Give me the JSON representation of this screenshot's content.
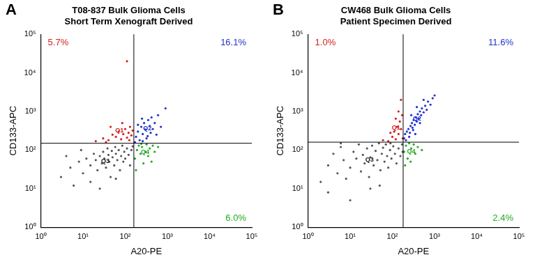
{
  "chart_data": [
    {
      "type": "scatter",
      "panel": "A",
      "title": [
        "T08-837 Bulk Glioma Cells",
        "Short Term Xenograft Derived"
      ],
      "x_label": "A20-PE",
      "y_label": "CD133-APC",
      "log": true,
      "grid": false,
      "xlim": [
        1,
        100000
      ],
      "ylim": [
        1,
        100000
      ],
      "xticks": [
        {
          "value": 1,
          "label": "10⁰"
        },
        {
          "value": 10,
          "label": "10¹"
        },
        {
          "value": 100,
          "label": "10²"
        },
        {
          "value": 1000,
          "label": "10³"
        },
        {
          "value": 10000,
          "label": "10⁴"
        },
        {
          "value": 100000,
          "label": "10⁵"
        }
      ],
      "yticks": [
        {
          "value": 1,
          "label": "10⁰"
        },
        {
          "value": 10,
          "label": "10¹"
        },
        {
          "value": 100,
          "label": "10²"
        },
        {
          "value": 1000,
          "label": "10³"
        },
        {
          "value": 10000,
          "label": "10⁴"
        },
        {
          "value": 100000,
          "label": "10⁵"
        }
      ],
      "gates": {
        "x": 160,
        "y": 150
      },
      "series": [
        {
          "name": "Q3",
          "color": "#555555",
          "values": [
            [
              3,
              20
            ],
            [
              5,
              35
            ],
            [
              8,
              50
            ],
            [
              10,
              25
            ],
            [
              12,
              60
            ],
            [
              15,
              40
            ],
            [
              18,
              80
            ],
            [
              20,
              55
            ],
            [
              22,
              30
            ],
            [
              25,
              70
            ],
            [
              28,
              45
            ],
            [
              30,
              90
            ],
            [
              32,
              60
            ],
            [
              35,
              35
            ],
            [
              38,
              110
            ],
            [
              40,
              75
            ],
            [
              42,
              50
            ],
            [
              45,
              20
            ],
            [
              48,
              95
            ],
            [
              50,
              65
            ],
            [
              55,
              40
            ],
            [
              58,
              120
            ],
            [
              60,
              80
            ],
            [
              65,
              55
            ],
            [
              70,
              100
            ],
            [
              75,
              30
            ],
            [
              80,
              70
            ],
            [
              85,
              130
            ],
            [
              90,
              50
            ],
            [
              95,
              90
            ],
            [
              100,
              60
            ],
            [
              110,
              110
            ],
            [
              120,
              75
            ],
            [
              130,
              40
            ],
            [
              140,
              100
            ],
            [
              150,
              125
            ],
            [
              6,
              12
            ],
            [
              15,
              15
            ],
            [
              25,
              10
            ],
            [
              60,
              18
            ],
            [
              4,
              70
            ],
            [
              9,
              100
            ]
          ]
        },
        {
          "name": "Q1",
          "color": "#d42020",
          "values": [
            [
              20,
              170
            ],
            [
              30,
              200
            ],
            [
              40,
              180
            ],
            [
              50,
              250
            ],
            [
              60,
              220
            ],
            [
              70,
              300
            ],
            [
              80,
              190
            ],
            [
              90,
              260
            ],
            [
              100,
              350
            ],
            [
              110,
              210
            ],
            [
              120,
              280
            ],
            [
              130,
              400
            ],
            [
              140,
              240
            ],
            [
              150,
              320
            ],
            [
              45,
              400
            ],
            [
              85,
              500
            ],
            [
              35,
              160
            ],
            [
              125,
              180
            ],
            [
              110,
              20000
            ]
          ],
          "percent": 5.7,
          "percent_label": "5.7%"
        },
        {
          "name": "Q2",
          "color": "#2233cc",
          "values": [
            [
              170,
              160
            ],
            [
              180,
              220
            ],
            [
              200,
              300
            ],
            [
              220,
              180
            ],
            [
              240,
              400
            ],
            [
              260,
              260
            ],
            [
              280,
              500
            ],
            [
              300,
              340
            ],
            [
              320,
              200
            ],
            [
              350,
              600
            ],
            [
              380,
              420
            ],
            [
              400,
              280
            ],
            [
              420,
              700
            ],
            [
              450,
              350
            ],
            [
              500,
              500
            ],
            [
              550,
              250
            ],
            [
              600,
              800
            ],
            [
              200,
              450
            ],
            [
              260,
              170
            ],
            [
              340,
              230
            ],
            [
              700,
              400
            ],
            [
              900,
              1200
            ],
            [
              250,
              650
            ]
          ],
          "percent": 16.1,
          "percent_label": "16.1%"
        },
        {
          "name": "Q4",
          "color": "#22aa22",
          "values": [
            [
              170,
              60
            ],
            [
              190,
              100
            ],
            [
              210,
              130
            ],
            [
              230,
              80
            ],
            [
              250,
              120
            ],
            [
              270,
              45
            ],
            [
              300,
              90
            ],
            [
              320,
              140
            ],
            [
              350,
              70
            ],
            [
              380,
              110
            ],
            [
              420,
              50
            ],
            [
              450,
              130
            ],
            [
              500,
              90
            ],
            [
              180,
              30
            ],
            [
              240,
              145
            ],
            [
              600,
              120
            ]
          ],
          "percent": 6.0,
          "percent_label": "6.0%"
        }
      ]
    },
    {
      "type": "scatter",
      "panel": "B",
      "title": [
        "CW468 Bulk Glioma Cells",
        "Patient Specimen Derived"
      ],
      "x_label": "A20-PE",
      "y_label": "CD133-APC",
      "log": true,
      "grid": false,
      "xlim": [
        1,
        100000
      ],
      "ylim": [
        1,
        100000
      ],
      "xticks": [
        {
          "value": 1,
          "label": "10⁰"
        },
        {
          "value": 10,
          "label": "10¹"
        },
        {
          "value": 100,
          "label": "10²"
        },
        {
          "value": 1000,
          "label": "10³"
        },
        {
          "value": 10000,
          "label": "10⁴"
        },
        {
          "value": 100000,
          "label": "10⁵"
        }
      ],
      "yticks": [
        {
          "value": 1,
          "label": "10⁰"
        },
        {
          "value": 10,
          "label": "10¹"
        },
        {
          "value": 100,
          "label": "10²"
        },
        {
          "value": 1000,
          "label": "10³"
        },
        {
          "value": 10000,
          "label": "10⁴"
        },
        {
          "value": 100000,
          "label": "10⁵"
        }
      ],
      "gates": {
        "x": 180,
        "y": 160
      },
      "series": [
        {
          "name": "Q3",
          "color": "#555555",
          "values": [
            [
              2,
              15
            ],
            [
              3,
              40
            ],
            [
              4,
              80
            ],
            [
              5,
              25
            ],
            [
              6,
              120
            ],
            [
              7,
              55
            ],
            [
              8,
              18
            ],
            [
              10,
              35
            ],
            [
              12,
              90
            ],
            [
              14,
              60
            ],
            [
              16,
              140
            ],
            [
              18,
              28
            ],
            [
              20,
              75
            ],
            [
              22,
              45
            ],
            [
              25,
              110
            ],
            [
              28,
              20
            ],
            [
              30,
              65
            ],
            [
              33,
              130
            ],
            [
              36,
              40
            ],
            [
              40,
              95
            ],
            [
              44,
              55
            ],
            [
              48,
              150
            ],
            [
              52,
              30
            ],
            [
              56,
              80
            ],
            [
              60,
              115
            ],
            [
              65,
              50
            ],
            [
              70,
              140
            ],
            [
              75,
              70
            ],
            [
              80,
              35
            ],
            [
              88,
              100
            ],
            [
              95,
              60
            ],
            [
              105,
              125
            ],
            [
              115,
              80
            ],
            [
              125,
              45
            ],
            [
              140,
              110
            ],
            [
              155,
              70
            ],
            [
              170,
              140
            ],
            [
              175,
              90
            ],
            [
              3,
              8
            ],
            [
              10,
              5
            ],
            [
              30,
              10
            ],
            [
              6,
              150
            ],
            [
              50,
              12
            ],
            [
              90,
              150
            ]
          ]
        },
        {
          "name": "Q1",
          "color": "#d42020",
          "values": [
            [
              80,
              170
            ],
            [
              100,
              220
            ],
            [
              110,
              300
            ],
            [
              120,
              190
            ],
            [
              130,
              400
            ],
            [
              140,
              260
            ],
            [
              150,
              550
            ],
            [
              160,
              350
            ],
            [
              170,
              800
            ],
            [
              120,
              650
            ],
            [
              90,
              280
            ],
            [
              175,
              200
            ],
            [
              140,
              1000
            ],
            [
              60,
              180
            ],
            [
              160,
              2000
            ]
          ],
          "percent": 1.0,
          "percent_label": "1.0%"
        },
        {
          "name": "Q2",
          "color": "#2233cc",
          "values": [
            [
              190,
              200
            ],
            [
              200,
              260
            ],
            [
              220,
              300
            ],
            [
              240,
              350
            ],
            [
              250,
              220
            ],
            [
              270,
              420
            ],
            [
              290,
              500
            ],
            [
              300,
              380
            ],
            [
              320,
              600
            ],
            [
              340,
              450
            ],
            [
              360,
              700
            ],
            [
              380,
              550
            ],
            [
              400,
              850
            ],
            [
              420,
              650
            ],
            [
              450,
              1000
            ],
            [
              480,
              800
            ],
            [
              500,
              1200
            ],
            [
              550,
              950
            ],
            [
              600,
              1400
            ],
            [
              650,
              1100
            ],
            [
              700,
              1800
            ],
            [
              800,
              1500
            ],
            [
              900,
              2200
            ],
            [
              1000,
              2600
            ],
            [
              210,
              180
            ],
            [
              260,
              280
            ],
            [
              310,
              330
            ],
            [
              350,
              260
            ],
            [
              450,
              500
            ],
            [
              280,
              800
            ],
            [
              380,
              1300
            ],
            [
              550,
              2000
            ]
          ],
          "percent": 11.6,
          "percent_label": "11.6%"
        },
        {
          "name": "Q4",
          "color": "#22aa22",
          "values": [
            [
              190,
              90
            ],
            [
              210,
              130
            ],
            [
              230,
              60
            ],
            [
              250,
              150
            ],
            [
              280,
              110
            ],
            [
              320,
              140
            ],
            [
              350,
              80
            ],
            [
              400,
              120
            ],
            [
              200,
              40
            ],
            [
              500,
              100
            ],
            [
              270,
              50
            ]
          ],
          "percent": 2.4,
          "percent_label": "2.4%"
        }
      ]
    }
  ]
}
